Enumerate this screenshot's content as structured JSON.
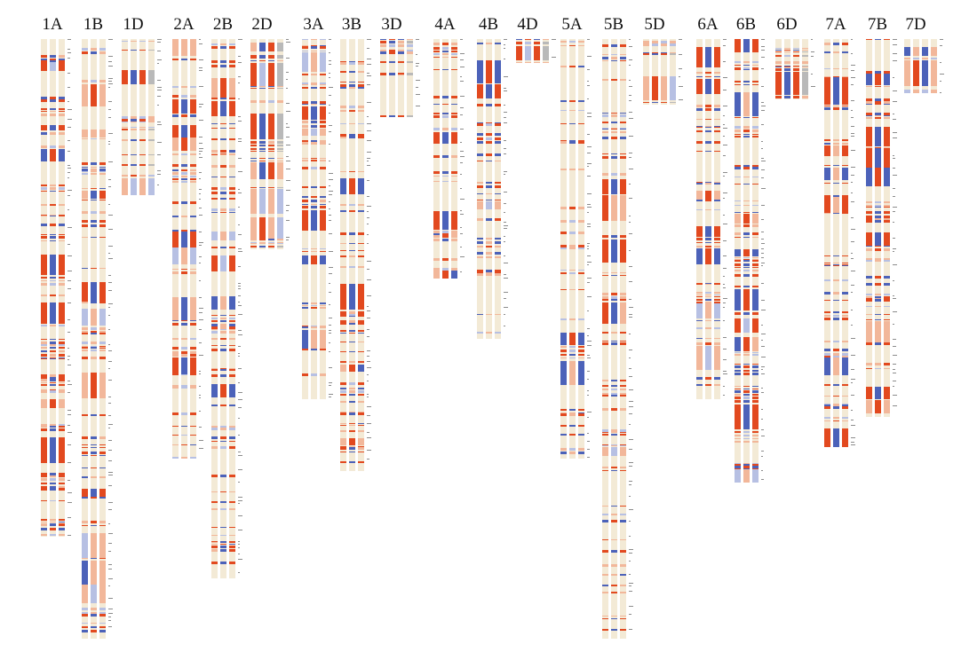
{
  "figure": {
    "colors": {
      "background_track": "#f3ead6",
      "red": "#e2491f",
      "light_red": "#f2b79a",
      "blue": "#4c62b9",
      "light_blue": "#b7c0e3",
      "gray": "#b9b9b9",
      "tick": "#8c8c8c"
    },
    "chromosomes": [
      {
        "label": "1A",
        "length": 0.83,
        "density": 0.55
      },
      {
        "label": "1B",
        "length": 1.0,
        "density": 0.55
      },
      {
        "label": "1D",
        "length": 0.26,
        "density": 0.4
      },
      {
        "label": "2A",
        "length": 0.7,
        "density": 0.4
      },
      {
        "label": "2B",
        "length": 0.9,
        "density": 0.45
      },
      {
        "label": "2D",
        "length": 0.35,
        "density": 0.6
      },
      {
        "label": "3A",
        "length": 0.6,
        "density": 0.5
      },
      {
        "label": "3B",
        "length": 0.72,
        "density": 0.4
      },
      {
        "label": "3D",
        "length": 0.13,
        "density": 0.55
      },
      {
        "label": "4A",
        "length": 0.4,
        "density": 0.45
      },
      {
        "label": "4B",
        "length": 0.5,
        "density": 0.45
      },
      {
        "label": "4D",
        "length": 0.04,
        "density": 0.6
      },
      {
        "label": "5A",
        "length": 0.7,
        "density": 0.4
      },
      {
        "label": "5B",
        "length": 1.0,
        "density": 0.4
      },
      {
        "label": "5D",
        "length": 0.11,
        "density": 0.45
      },
      {
        "label": "6A",
        "length": 0.6,
        "density": 0.55
      },
      {
        "label": "6B",
        "length": 0.74,
        "density": 0.6
      },
      {
        "label": "6D",
        "length": 0.1,
        "density": 0.6
      },
      {
        "label": "7A",
        "length": 0.68,
        "density": 0.5
      },
      {
        "label": "7B",
        "length": 0.63,
        "density": 0.6
      },
      {
        "label": "7D",
        "length": 0.09,
        "density": 0.55
      }
    ]
  }
}
